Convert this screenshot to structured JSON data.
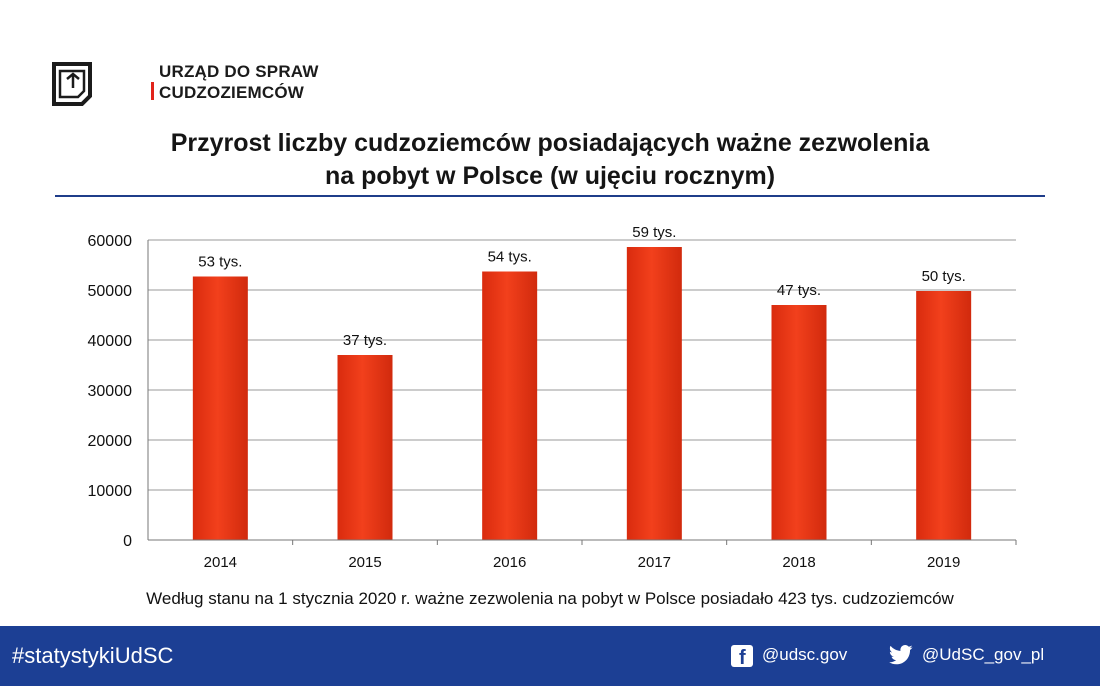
{
  "logo": {
    "line1": "URZĄD DO SPRAW",
    "line2": "CUDZOZIEMCÓW",
    "accent_color": "#e1241b"
  },
  "title": {
    "line1": "Przyrost liczby cudzoziemców posiadających ważne zezwolenia",
    "line2": "na pobyt w Polsce (w ujęciu rocznym)"
  },
  "chart_data": {
    "type": "bar",
    "categories": [
      "2014",
      "2015",
      "2016",
      "2017",
      "2018",
      "2019"
    ],
    "values": [
      52700,
      37000,
      53700,
      58600,
      47000,
      49800
    ],
    "data_labels": [
      "53 tys.",
      "37 tys.",
      "54 tys.",
      "59 tys.",
      "47 tys.",
      "50 tys."
    ],
    "ylim": [
      0,
      60000
    ],
    "yticks": [
      "0",
      "10000",
      "20000",
      "30000",
      "40000",
      "50000",
      "60000"
    ],
    "grid": true,
    "bar_color": "#f2401c",
    "legend": "none"
  },
  "footnote": "Według stanu na 1 stycznia 2020 r. ważne zezwolenia na pobyt w Polsce posiadało 423 tys. cudzoziemców",
  "footer": {
    "hashtag": "#statystykiUdSC",
    "facebook_icon": "facebook-icon",
    "facebook": "@udsc.gov",
    "twitter_icon": "twitter-icon",
    "twitter": "@UdSC_gov_pl",
    "background": "#1c3f94"
  }
}
